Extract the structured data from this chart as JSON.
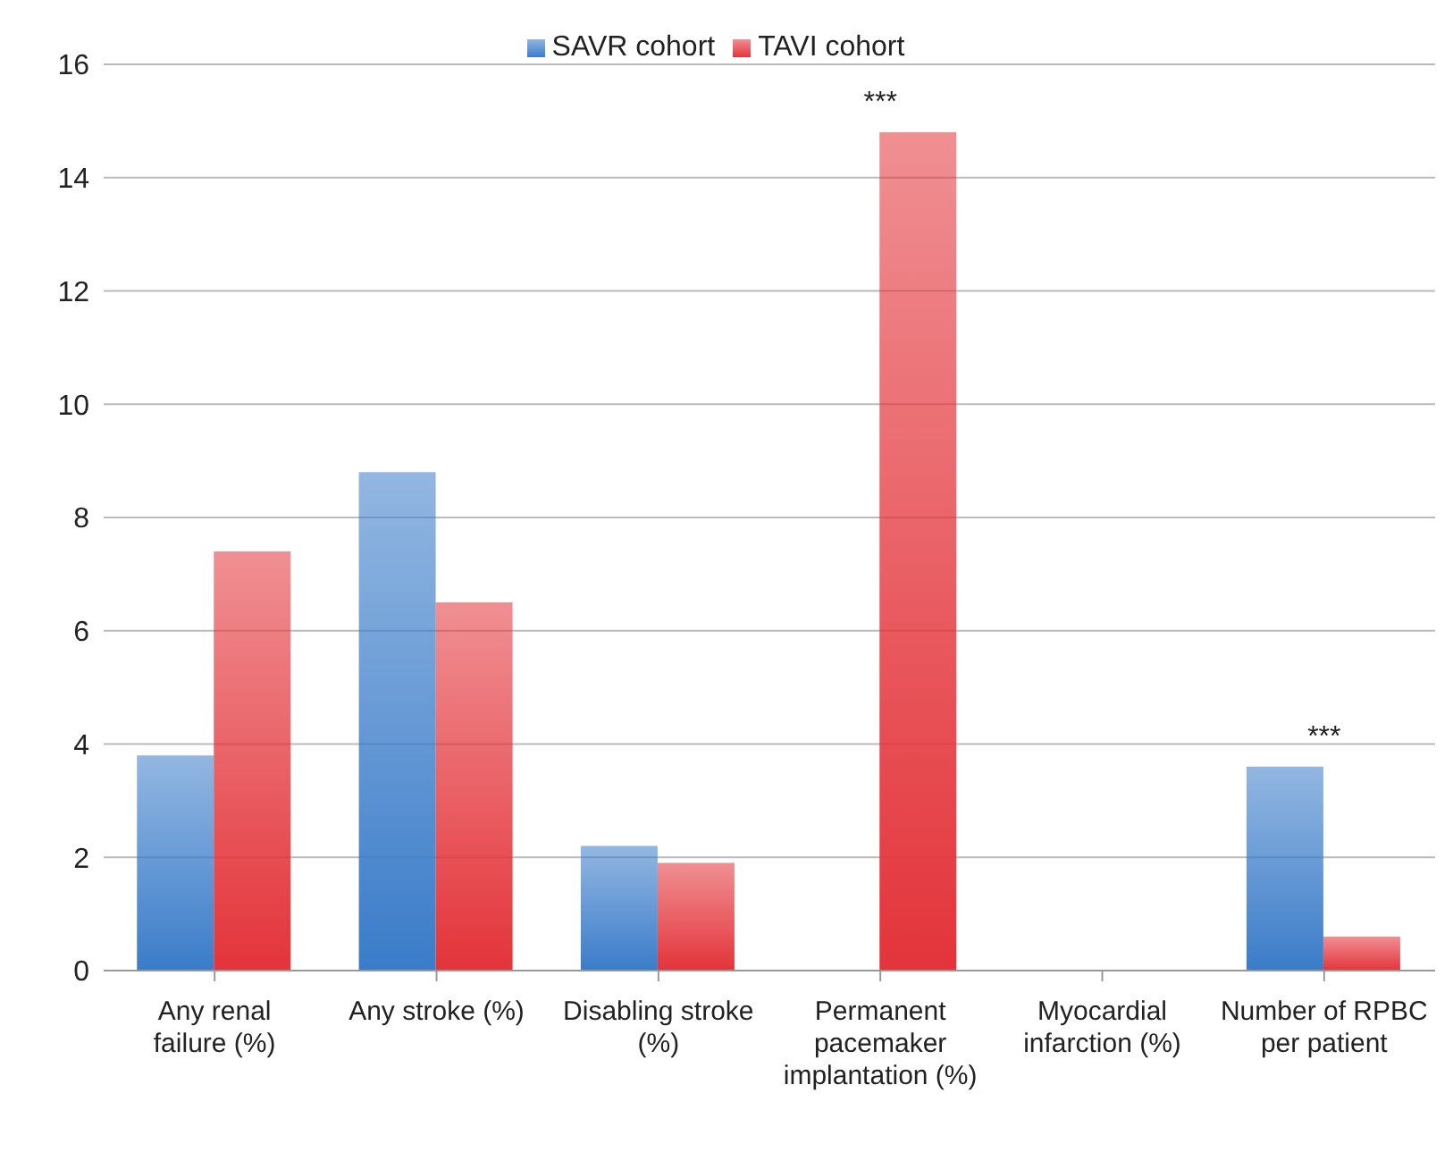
{
  "chart_data": {
    "type": "bar",
    "categories": [
      "Any renal failure (%)",
      "Any stroke (%)",
      "Disabling stroke (%)",
      "Permanent pacemaker implantation (%)",
      "Myocardial infarction (%)",
      "Number of RPBC per patient"
    ],
    "series": [
      {
        "name": "SAVR cohort",
        "color": "#3a7cc9",
        "values": [
          3.8,
          8.8,
          2.2,
          0,
          0,
          3.6
        ]
      },
      {
        "name": "TAVI cohort",
        "color": "#e3343a",
        "values": [
          7.4,
          6.5,
          1.9,
          14.8,
          0,
          0.6
        ]
      }
    ],
    "ylim": [
      0,
      16
    ],
    "yticks": [
      0,
      2,
      4,
      6,
      8,
      10,
      12,
      14,
      16
    ],
    "grid": "y",
    "legend": "top",
    "annotations": [
      {
        "text": "***",
        "x": "Permanent pacemaker implantation (%)",
        "y": 14.8
      },
      {
        "text": "***",
        "x": "Number of RPBC per patient",
        "y": 3.6
      }
    ]
  }
}
